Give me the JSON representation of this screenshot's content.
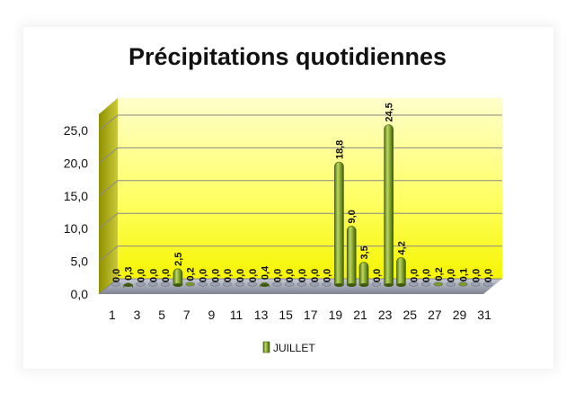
{
  "chart_data": {
    "type": "bar",
    "title": "Précipitations quotidiennes",
    "xlabel": "",
    "ylabel": "",
    "ylim": [
      0,
      25
    ],
    "y_ticks": [
      "0,0",
      "5,0",
      "10,0",
      "15,0",
      "20,0",
      "25,0"
    ],
    "x_tick_labels": [
      "1",
      "3",
      "5",
      "7",
      "9",
      "11",
      "13",
      "15",
      "17",
      "19",
      "21",
      "23",
      "25",
      "27",
      "29",
      "31"
    ],
    "categories": [
      "1",
      "2",
      "3",
      "4",
      "5",
      "6",
      "7",
      "8",
      "9",
      "10",
      "11",
      "12",
      "13",
      "14",
      "15",
      "16",
      "17",
      "18",
      "19",
      "20",
      "21",
      "22",
      "23",
      "24",
      "25",
      "26",
      "27",
      "28",
      "29",
      "30",
      "31"
    ],
    "series": [
      {
        "name": "JUILLET",
        "values": [
          0.0,
          0.3,
          0.0,
          0.0,
          0.0,
          2.5,
          0.2,
          0.0,
          0.0,
          0.0,
          0.0,
          0.0,
          0.4,
          0.0,
          0.0,
          0.0,
          0.0,
          0.0,
          18.8,
          9.0,
          3.5,
          0.0,
          24.5,
          4.2,
          0.0,
          0.0,
          0.2,
          0.0,
          0.1,
          0.0,
          0.0
        ],
        "labels": [
          "0,0",
          "0,3",
          "0,0",
          "0,0",
          "0,0",
          "2,5",
          "0,2",
          "0,0",
          "0,0",
          "0,0",
          "0,0",
          "0,0",
          "0,4",
          "0,0",
          "0,0",
          "0,0",
          "0,0",
          "0,0",
          "18,8",
          "9,0",
          "3,5",
          "0,0",
          "24,5",
          "4,2",
          "0,0",
          "0,0",
          "0,2",
          "0,0",
          "0,1",
          "0,0",
          "0,0"
        ]
      }
    ],
    "grid": true,
    "legend_position": "bottom",
    "colors": {
      "bar": "#7a9a2a",
      "bar_dark": "#3f5a10",
      "bar_light": "#b8d35a",
      "wall_top": "#ffff99",
      "wall_bottom": "#ffff00",
      "side_wall": "#a8a800",
      "floor": "#9ea3b3",
      "grid": "#8a8a8a"
    }
  }
}
